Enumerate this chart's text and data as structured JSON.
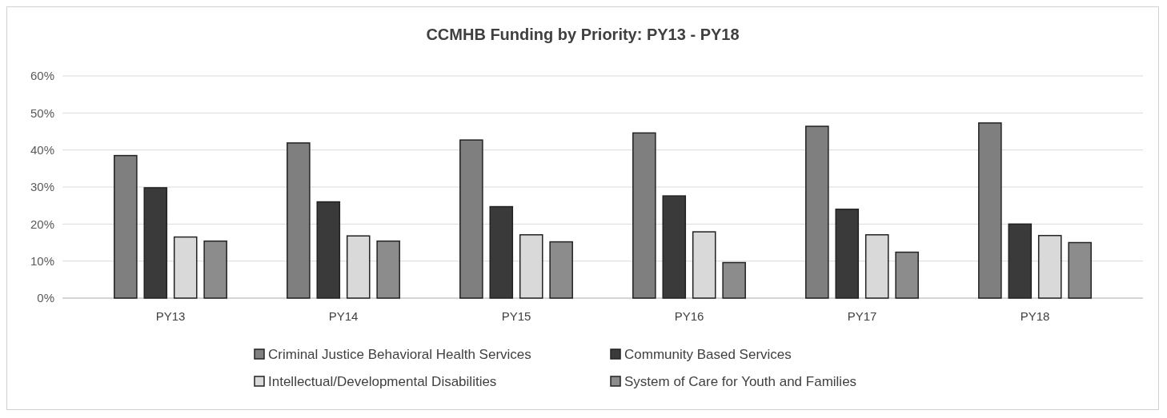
{
  "chart_data": {
    "type": "bar",
    "title": "CCMHB Funding by Priority: PY13 - PY18",
    "categories": [
      "PY13",
      "PY14",
      "PY15",
      "PY16",
      "PY17",
      "PY18"
    ],
    "series": [
      {
        "name": "Criminal Justice Behavioral Health Services",
        "color": "#7f7f7f",
        "values": [
          38.5,
          41.9,
          42.7,
          44.6,
          46.4,
          47.3
        ]
      },
      {
        "name": "Community Based Services",
        "color": "#3a3a3a",
        "values": [
          29.8,
          26,
          24.7,
          27.6,
          24,
          20
        ]
      },
      {
        "name": "Intellectual/Developmental Disabilities",
        "color": "#d9d9d9",
        "values": [
          16.5,
          16.8,
          17.1,
          17.9,
          17.1,
          16.9
        ]
      },
      {
        "name": "System of Care for Youth and Families",
        "color": "#8c8c8c",
        "values": [
          15.4,
          15.4,
          15.2,
          9.6,
          12.4,
          15
        ]
      }
    ],
    "ylim": [
      0,
      60
    ],
    "yticks": [
      {
        "value": 0,
        "label": "0%"
      },
      {
        "value": 10,
        "label": "10%"
      },
      {
        "value": 20,
        "label": "20%"
      },
      {
        "value": 30,
        "label": "30%"
      },
      {
        "value": 40,
        "label": "40%"
      },
      {
        "value": 50,
        "label": "50%"
      },
      {
        "value": 60,
        "label": "60%"
      }
    ],
    "grid": "y",
    "legend": "bottom"
  }
}
